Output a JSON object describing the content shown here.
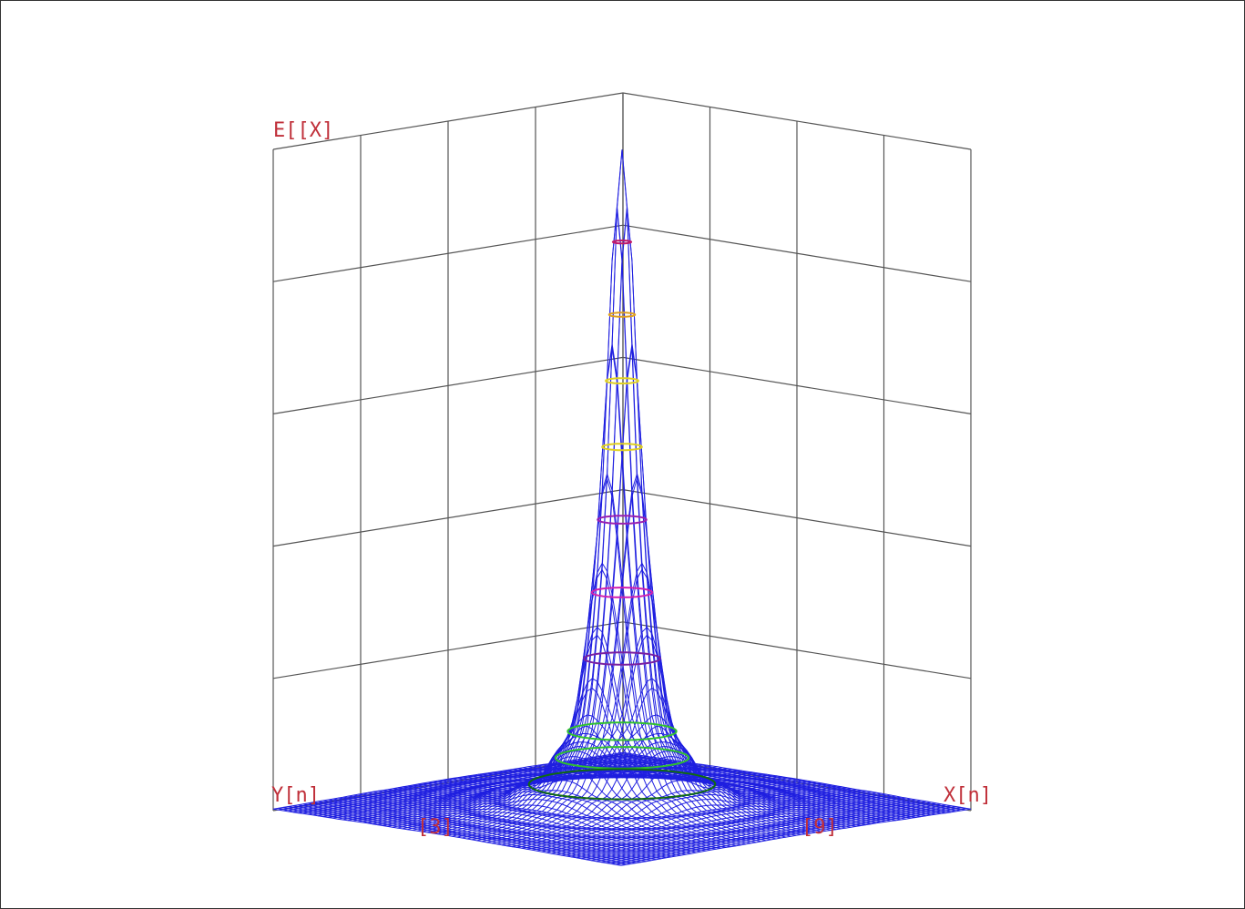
{
  "chart_data": {
    "type": "surface-3d",
    "labels": {
      "z_axis": "E[[X]",
      "y_axis": "Y[n]",
      "x_axis": "X[n]",
      "floor_left": "[3]",
      "floor_right": "[9]"
    },
    "function": "peaked radial surface with oscillating ridges",
    "grid": true,
    "walls": 2,
    "colors": {
      "mesh": "#1f1fe0",
      "grid": "#555555",
      "labels": "#c0303a",
      "contours": [
        "#c01a6a",
        "#e0a020",
        "#e0d020",
        "#e0d020",
        "#9a20b0",
        "#d020b0",
        "#7a20a0",
        "#30c030",
        "#30c030",
        "#106a10"
      ]
    }
  }
}
